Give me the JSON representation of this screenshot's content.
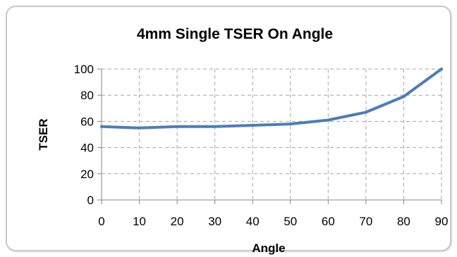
{
  "chart_data": {
    "type": "line",
    "title": "4mm Single TSER On Angle",
    "xlabel": "Angle",
    "ylabel": "TSER",
    "x": [
      0,
      10,
      20,
      30,
      40,
      50,
      60,
      70,
      80,
      90
    ],
    "series": [
      {
        "values": [
          56,
          55,
          56,
          56,
          57,
          58,
          61,
          67,
          79,
          100
        ]
      }
    ],
    "xlim": [
      0,
      90
    ],
    "ylim": [
      0,
      100
    ],
    "xticks": [
      0,
      10,
      20,
      30,
      40,
      50,
      60,
      70,
      80,
      90
    ],
    "yticks": [
      0,
      20,
      40,
      60,
      80,
      100
    ],
    "grid": true,
    "legend": "none",
    "line_color": "#4a7ebb"
  }
}
